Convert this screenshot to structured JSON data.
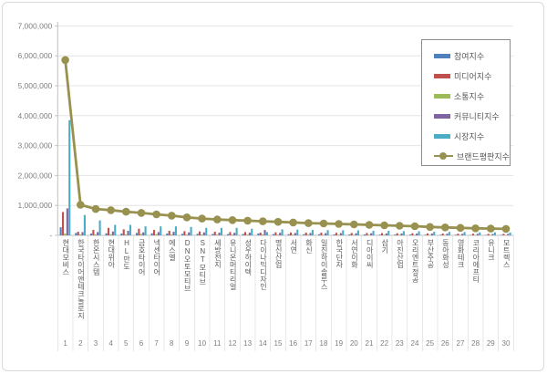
{
  "chart": {
    "background": "#FFFFFF",
    "frame_border_color": "#DADADA",
    "gridline_color": "#E4E4E4",
    "axis_color": "#BFBFBF",
    "separator_color": "#DCDCDC",
    "tick_label_color": "#7F7F7F",
    "category_label_color": "#595959",
    "legend_border_color": "#8C8C8C",
    "legend_text_color": "#595959"
  },
  "chart_data": {
    "type": "bar",
    "overlay": "line",
    "title": "",
    "xlabel": "",
    "ylabel": "",
    "ylim": [
      0,
      7000000
    ],
    "grid": "horizontal",
    "legend_position": "top-right",
    "y_ticks": [
      "7,000,000",
      "6,000,000",
      "5,000,000",
      "4,000,000",
      "3,000,000",
      "2,000,000",
      "1,000,000",
      "-"
    ],
    "ranks": [
      "1",
      "2",
      "3",
      "4",
      "5",
      "6",
      "7",
      "8",
      "9",
      "10",
      "11",
      "12",
      "13",
      "14",
      "15",
      "16",
      "17",
      "18",
      "19",
      "20",
      "21",
      "22",
      "23",
      "24",
      "25",
      "26",
      "27",
      "28",
      "29",
      "30"
    ],
    "categories": [
      "현대모비스",
      "한국타이어앤테크놀로지",
      "한온시스템",
      "현대위아",
      "HL만도",
      "금호타이어",
      "넥센타이어",
      "에스엘",
      "DN오토모티브",
      "SNT모티브",
      "세방전지",
      "유니온머티리얼",
      "성우하이텍",
      "다이나믹디자인",
      "명신산업",
      "서연",
      "화신",
      "일진하이솔루스",
      "한국단자",
      "서연이화",
      "디아이씨",
      "삼기",
      "아진산업",
      "오리엔트정공",
      "부산주공",
      "동아화성",
      "영화테크",
      "코리아에프티",
      "유니크",
      "모트렉스"
    ],
    "series": [
      {
        "name": "참여지수",
        "color": "#4F81BD",
        "values": [
          270000,
          80000,
          60000,
          70000,
          60000,
          80000,
          70000,
          60000,
          50000,
          50000,
          45000,
          40000,
          45000,
          60000,
          40000,
          40000,
          35000,
          35000,
          30000,
          30000,
          30000,
          25000,
          25000,
          25000,
          20000,
          20000,
          20000,
          15000,
          15000,
          15000
        ]
      },
      {
        "name": "미디어지수",
        "color": "#C0504D",
        "values": [
          780000,
          120000,
          180000,
          250000,
          200000,
          220000,
          180000,
          150000,
          140000,
          130000,
          120000,
          110000,
          110000,
          90000,
          100000,
          95000,
          90000,
          90000,
          85000,
          80000,
          80000,
          75000,
          70000,
          70000,
          65000,
          60000,
          55000,
          55000,
          50000,
          50000
        ]
      },
      {
        "name": "소통지수",
        "color": "#9BBB59",
        "values": [
          60000,
          30000,
          30000,
          40000,
          30000,
          50000,
          40000,
          30000,
          30000,
          30000,
          25000,
          25000,
          25000,
          30000,
          25000,
          25000,
          25000,
          20000,
          20000,
          20000,
          20000,
          20000,
          20000,
          15000,
          15000,
          15000,
          15000,
          15000,
          15000,
          10000
        ]
      },
      {
        "name": "커뮤니티지수",
        "color": "#8064A2",
        "values": [
          900000,
          110000,
          110000,
          130000,
          150000,
          100000,
          110000,
          120000,
          100000,
          100000,
          90000,
          85000,
          90000,
          180000,
          85000,
          80000,
          80000,
          75000,
          75000,
          70000,
          70000,
          65000,
          65000,
          60000,
          60000,
          55000,
          50000,
          50000,
          45000,
          45000
        ]
      },
      {
        "name": "시장지수",
        "color": "#4BACC6",
        "values": [
          3850000,
          680000,
          500000,
          350000,
          350000,
          300000,
          300000,
          300000,
          280000,
          250000,
          250000,
          250000,
          220000,
          110000,
          200000,
          190000,
          180000,
          175000,
          170000,
          165000,
          150000,
          150000,
          140000,
          135000,
          120000,
          115000,
          110000,
          100000,
          100000,
          95000
        ]
      }
    ],
    "line_series": {
      "name": "브랜드평판지수",
      "color": "#98914F",
      "values": [
        5860000,
        1020000,
        880000,
        840000,
        790000,
        750000,
        700000,
        660000,
        600000,
        560000,
        530000,
        510000,
        490000,
        470000,
        450000,
        430000,
        410000,
        395000,
        380000,
        365000,
        350000,
        335000,
        320000,
        305000,
        280000,
        265000,
        250000,
        235000,
        225000,
        215000
      ]
    }
  }
}
